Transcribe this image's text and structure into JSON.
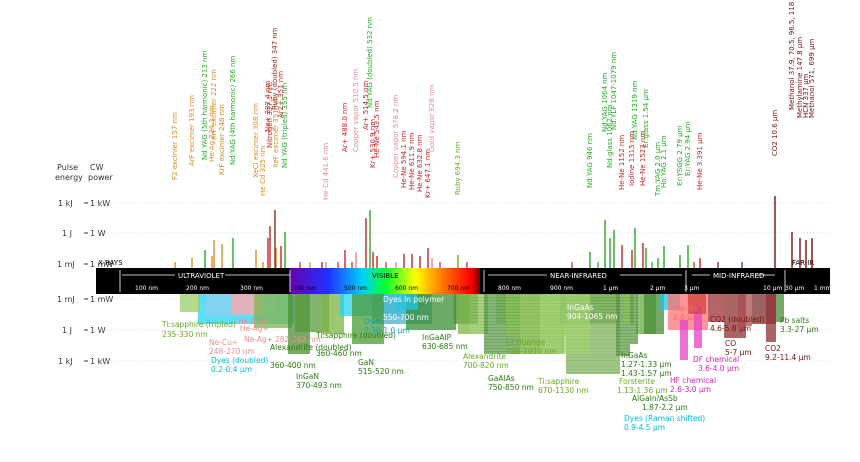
{
  "axis_labels": {
    "pulse_energy": [
      "Pulse",
      "energy"
    ],
    "cw_power": [
      "CW",
      "power"
    ],
    "upper_left": [
      "1 kJ",
      "1 J",
      "1 mJ"
    ],
    "upper_right": [
      "1 kW",
      "1 W",
      "1 mW"
    ],
    "lower_left": [
      "1 mJ",
      "1 J",
      "1 kJ"
    ],
    "lower_right": [
      "1 mW",
      "1 W",
      "1 kW"
    ]
  },
  "regions": [
    "X-RAYS",
    "ULTRAVIOLET",
    "VISIBLE",
    "NEAR-INFRARED",
    "MID-INFRARED",
    "FAR-IR"
  ],
  "ticks": [
    "100 nm",
    "200 nm",
    "300 nm",
    "400 nm",
    "500 nm",
    "600 nm",
    "700 nm",
    "800 nm",
    "900 nm",
    "1 μm",
    "2 μm",
    "3 μm",
    "10 μm",
    "30 μm",
    "1 mm"
  ],
  "gas_lasers": [
    {
      "name": "F2 excimer  157 nm",
      "color": "#e08a1e"
    },
    {
      "name": "ArF excimer  193 nm",
      "color": "#e08a1e"
    },
    {
      "name": "Nd:YAG (5th harmonic)  213 nm",
      "color": "#22aa22"
    },
    {
      "name": "He-Ag  224.3 nm",
      "color": "#e08a1e"
    },
    {
      "name": "KrF excimer  222 nm",
      "color": "#e08a1e"
    },
    {
      "name": "KrF excimer  248 nm",
      "color": "#e08a1e"
    },
    {
      "name": "Nd:YAG (4th harmonic)  266 nm",
      "color": "#22aa22"
    },
    {
      "name": "XeCl excimer  308 nm",
      "color": "#e08a1e"
    },
    {
      "name": "He-Cd  325 nm",
      "color": "#e08a1e"
    },
    {
      "name": "Nitrogen  337.1 nm",
      "color": "#cc2222"
    },
    {
      "name": "XeF excimer  351 nm",
      "color": "#e08a1e"
    },
    {
      "name": "Ne+  332.4 nm",
      "color": "#cc2222"
    },
    {
      "name": "Ruby (doubled)  347 nm",
      "color": "#8a2a1a"
    },
    {
      "name": "Ar2+  351 nm",
      "color": "#cc2222"
    },
    {
      "name": "Nd:YAG (tripled)  355 nm",
      "color": "#22aa22"
    },
    {
      "name": "He-Cd  441.6 nm",
      "color": "#e88888"
    },
    {
      "name": "Ar+  488.0 nm",
      "color": "#cc2222"
    },
    {
      "name": "Copper vapor  510.5 nm",
      "color": "#e88888"
    },
    {
      "name": "Ar+  514.5 nm",
      "color": "#cc2222"
    },
    {
      "name": "He-Ne  543.5 nm",
      "color": "#cc2222"
    },
    {
      "name": "Nd:YAG (doubled)  532 nm",
      "color": "#22aa22"
    },
    {
      "name": "Kr+  530.9 nm",
      "color": "#cc2222"
    },
    {
      "name": "Copper vapor  578.2 nm",
      "color": "#e88888"
    },
    {
      "name": "He-Ne  594.1 nm",
      "color": "#cc2222"
    },
    {
      "name": "He-Ne  611.9 nm",
      "color": "#cc2222"
    },
    {
      "name": "He-Ne  632.8 nm",
      "color": "#cc2222"
    },
    {
      "name": "Kr+  647.1 nm",
      "color": "#cc2222"
    },
    {
      "name": "Gold vapor  628 nm",
      "color": "#e88888"
    },
    {
      "name": "Ruby  694.3 nm",
      "color": "#66aa22"
    },
    {
      "name": "Nd:YAG  946 nm",
      "color": "#22aa22"
    },
    {
      "name": "Nd:YAG  1064 nm",
      "color": "#22aa22"
    },
    {
      "name": "Nd:YLF  1047-1079 nm",
      "color": "#22aa22"
    },
    {
      "name": "Nd:glass  1062 nm",
      "color": "#22aa22"
    },
    {
      "name": "He-Ne  1152 nm",
      "color": "#cc2222"
    },
    {
      "name": "Iodine  1315 nm",
      "color": "#cc2222"
    },
    {
      "name": "Nd:YAG  1319 nm",
      "color": "#22aa22"
    },
    {
      "name": "He-Ne  1523 nm",
      "color": "#cc2222"
    },
    {
      "name": "Er:glass  1.54 μm",
      "color": "#22aa22"
    },
    {
      "name": "Tm:YAG  2.0 μm",
      "color": "#22aa22"
    },
    {
      "name": "Ho:YAG  2.1 μm",
      "color": "#22aa22"
    },
    {
      "name": "Er:YAG  2.94 μm",
      "color": "#22aa22"
    },
    {
      "name": "Er:YSGG  2.79 μm",
      "color": "#22aa22"
    },
    {
      "name": "He-Ne  3.391 μm",
      "color": "#cc2222"
    },
    {
      "name": "CO2  10.6 μm",
      "color": "#7a1010"
    },
    {
      "name": "Methanol  37.9, 70.5, 96.5, 118 μm",
      "color": "#7a1010"
    },
    {
      "name": "Methylamine  147.8 μm",
      "color": "#7a1010"
    },
    {
      "name": "HCN  337 μm",
      "color": "#7a1010"
    },
    {
      "name": "Methanol  571, 699 μm",
      "color": "#7a1010"
    }
  ],
  "lower_labels": [
    {
      "name": "Ti:sapphire (tripled)",
      "range": "235-330 nm",
      "color": "#66aa22"
    },
    {
      "name": "He-Ne+",
      "range": "",
      "color": "#ff8888"
    },
    {
      "name": "He-Ag+",
      "range": "",
      "color": "#ff8888"
    },
    {
      "name": "Ne-Cu+",
      "range": "248-270 nm",
      "color": "#e89090"
    },
    {
      "name": "Ne-Ag+",
      "range": "282-292 nm",
      "color": "#e89090"
    },
    {
      "name": "Dyes (doubled)",
      "range": "0.2-0.4 μm",
      "color": "#00bbdd"
    },
    {
      "name": "Alexandrite (doubled)",
      "range": "360-400 nm",
      "color": "#2a7a10"
    },
    {
      "name": "InGaN",
      "range": "370-493 nm",
      "color": "#2a7a10"
    },
    {
      "name": "Ti:sapphire (doubled)",
      "range": "360-460 nm",
      "color": "#2a7a10"
    },
    {
      "name": "GaN",
      "range": "515-520 nm",
      "color": "#2a7a10"
    },
    {
      "name": "Dyes",
      "range": "0.38-1.0 μm",
      "color": "#00bbdd"
    },
    {
      "name": "Dyes in polymer",
      "range": "550-700 nm",
      "color": "#00bbdd"
    },
    {
      "name": "InGaAlP",
      "range": "630-685 nm",
      "color": "#2a7a10"
    },
    {
      "name": "Alexandrite",
      "range": "700-820 nm",
      "color": "#66aa22"
    },
    {
      "name": "GaAlAs",
      "range": "750-850 nm",
      "color": "#2a7a10"
    },
    {
      "name": "Cr:fluoride",
      "range": "780-1010 nm",
      "color": "#66aa22"
    },
    {
      "name": "Ti:sapphire",
      "range": "670-1130 nm",
      "color": "#66aa22"
    },
    {
      "name": "InGaAs",
      "range": "904-1065 nm",
      "color": "#2a7a10"
    },
    {
      "name": "InGaAs",
      "range": "1.27-1.33 μm",
      "color": "#2a7a10"
    },
    {
      "name": "InGaAsP",
      "range": "1.43-1.57 μm",
      "color": "#2a7a10"
    },
    {
      "name": "Forsterite",
      "range": "1.13-1.36 μm",
      "color": "#66aa22"
    },
    {
      "name": "AlGaIn/AsSb",
      "range": "1.87-2.2 μm",
      "color": "#2a7a10"
    },
    {
      "name": "Dyes (Raman shifted)",
      "range": "0.9-4.5 μm",
      "color": "#00bbdd"
    },
    {
      "name": "Xe-He",
      "range": "2.0 μm",
      "color": "#ff6666"
    },
    {
      "name": "DF chemical",
      "range": "3.6-4.0 μm",
      "color": "#e020c0"
    },
    {
      "name": "HF chemical",
      "range": "2.6-3.0 μm",
      "color": "#e020c0"
    },
    {
      "name": "CO2 (doubled)",
      "range": "4.6-5.8 μm",
      "color": "#7a1010"
    },
    {
      "name": "CO",
      "range": "5-7 μm",
      "color": "#7a1010"
    },
    {
      "name": "Pb salts",
      "range": "3.3-27 μm",
      "color": "#2a7a10"
    },
    {
      "name": "CO2",
      "range": "9.2-11.4 μm",
      "color": "#7a1010"
    }
  ]
}
